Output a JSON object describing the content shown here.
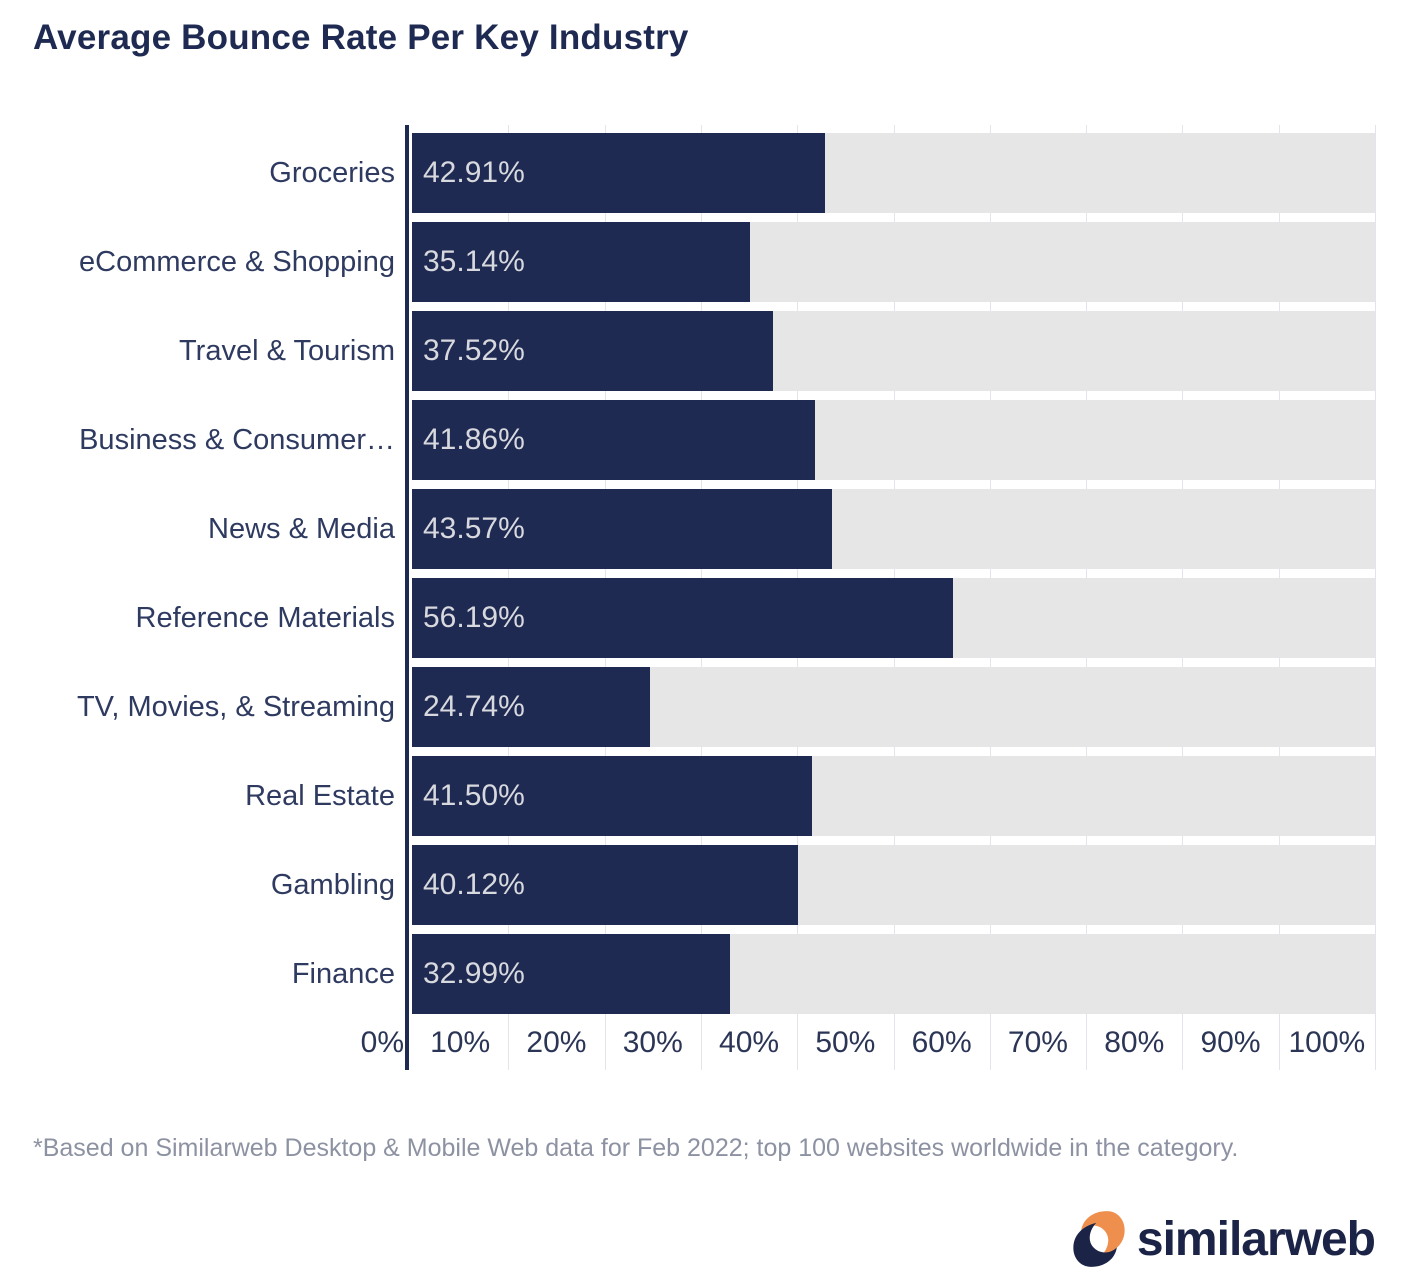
{
  "chart_data": {
    "type": "bar",
    "orientation": "horizontal",
    "title": "Average Bounce Rate Per Key Industry",
    "categories": [
      "Groceries",
      "eCommerce & Shopping",
      "Travel & Tourism",
      "Business & Consumer…",
      "News & Media",
      "Reference Materials",
      "TV, Movies, & Streaming",
      "Real Estate",
      "Gambling",
      "Finance"
    ],
    "values": [
      42.91,
      35.14,
      37.52,
      41.86,
      43.57,
      56.19,
      24.74,
      41.5,
      40.12,
      32.99
    ],
    "value_labels": [
      "42.91%",
      "35.14%",
      "37.52%",
      "41.86%",
      "43.57%",
      "56.19%",
      "24.74%",
      "41.50%",
      "40.12%",
      "32.99%"
    ],
    "x_ticks": [
      "0%",
      "10%",
      "20%",
      "30%",
      "40%",
      "50%",
      "60%",
      "70%",
      "80%",
      "90%",
      "100%"
    ],
    "xlim": [
      0,
      100
    ],
    "grid": true,
    "legend": "none",
    "colors": {
      "bar": "#1f2a52",
      "track": "#e6e6e6",
      "value_label": "#d8d9de",
      "axis": "#1f2a52",
      "tick_label": "#2b3556",
      "category_label": "#2e3a60",
      "title": "#1e2a52"
    }
  },
  "footnote": {
    "text": "*Based on Similarweb Desktop & Mobile Web data for Feb 2022; top 100 websites worldwide in the category."
  },
  "logo": {
    "text": "similarweb",
    "icon": "similarweb-swirl-icon",
    "colors": {
      "navy": "#1b2447",
      "orange": "#ef8f4e"
    }
  }
}
